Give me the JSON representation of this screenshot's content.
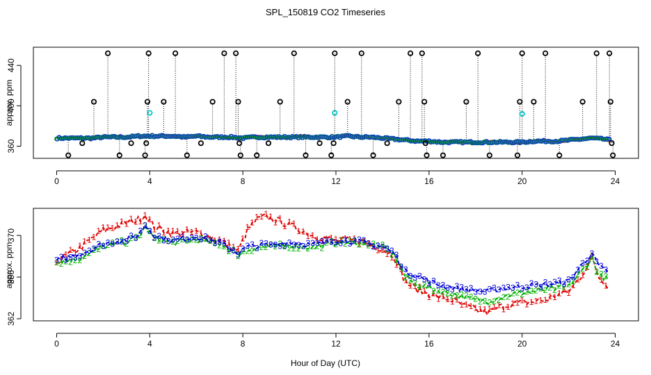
{
  "figure": {
    "title": "SPL_150819  CO2 Timeseries",
    "xlabel": "Hour of Day (UTC)"
  },
  "chart_data": [
    {
      "type": "scatter",
      "title": "",
      "xlabel": "",
      "ylabel": "approx. ppm",
      "xlim": [
        -1,
        25
      ],
      "ylim": [
        348,
        458
      ],
      "x_ticks": [
        0,
        4,
        8,
        12,
        16,
        20,
        24
      ],
      "y_ticks": [
        360,
        400,
        440
      ],
      "grid": false,
      "mean_trend": [
        [
          0,
          368
        ],
        [
          0.5,
          368
        ],
        [
          1,
          368
        ],
        [
          1.5,
          368
        ],
        [
          2,
          369
        ],
        [
          2.5,
          369
        ],
        [
          3,
          369
        ],
        [
          3.5,
          370
        ],
        [
          4,
          370
        ],
        [
          4.5,
          370
        ],
        [
          5,
          370
        ],
        [
          5.5,
          369
        ],
        [
          6,
          370
        ],
        [
          6.5,
          369
        ],
        [
          7,
          369
        ],
        [
          7.5,
          369
        ],
        [
          8,
          368
        ],
        [
          8.5,
          369
        ],
        [
          9,
          369
        ],
        [
          9.5,
          369
        ],
        [
          10,
          369
        ],
        [
          10.5,
          369
        ],
        [
          11,
          369
        ],
        [
          11.5,
          369
        ],
        [
          12,
          369
        ],
        [
          12.5,
          370
        ],
        [
          13,
          369
        ],
        [
          13.5,
          369
        ],
        [
          14,
          368
        ],
        [
          14.5,
          367
        ],
        [
          15,
          366
        ],
        [
          15.5,
          365
        ],
        [
          16,
          365
        ],
        [
          16.5,
          364
        ],
        [
          17,
          364
        ],
        [
          17.5,
          364
        ],
        [
          18,
          364
        ],
        [
          18.5,
          364
        ],
        [
          19,
          364
        ],
        [
          19.5,
          364
        ],
        [
          20,
          364
        ],
        [
          20.5,
          365
        ],
        [
          21,
          365
        ],
        [
          21.5,
          365
        ],
        [
          22,
          366
        ],
        [
          22.5,
          367
        ],
        [
          23,
          368
        ],
        [
          23.5,
          367
        ],
        [
          23.8,
          366
        ]
      ],
      "series": [
        {
          "name": "",
          "color": "#000000",
          "marker": "circle",
          "points": [
            [
              0.5,
              351
            ],
            [
              1.1,
              363
            ],
            [
              1.6,
              404
            ],
            [
              2.2,
              452
            ],
            [
              2.7,
              351
            ],
            [
              3.2,
              363
            ],
            [
              3.8,
              351
            ],
            [
              3.85,
              363
            ],
            [
              3.9,
              404
            ],
            [
              3.95,
              452
            ],
            [
              4.6,
              404
            ],
            [
              5.1,
              452
            ],
            [
              5.6,
              351
            ],
            [
              6.2,
              363
            ],
            [
              6.7,
              404
            ],
            [
              7.2,
              452
            ],
            [
              7.7,
              452
            ],
            [
              7.8,
              404
            ],
            [
              7.85,
              363
            ],
            [
              7.9,
              351
            ],
            [
              8.6,
              351
            ],
            [
              9.1,
              363
            ],
            [
              9.6,
              404
            ],
            [
              10.2,
              452
            ],
            [
              10.7,
              351
            ],
            [
              11.3,
              363
            ],
            [
              11.8,
              351
            ],
            [
              11.9,
              363
            ],
            [
              11.95,
              452
            ],
            [
              12.5,
              404
            ],
            [
              13.1,
              452
            ],
            [
              13.6,
              351
            ],
            [
              14.2,
              363
            ],
            [
              14.7,
              404
            ],
            [
              15.2,
              452
            ],
            [
              15.7,
              452
            ],
            [
              15.8,
              404
            ],
            [
              15.85,
              363
            ],
            [
              15.9,
              351
            ],
            [
              16.6,
              351
            ],
            [
              17.6,
              404
            ],
            [
              18.1,
              452
            ],
            [
              18.6,
              351
            ],
            [
              19.8,
              351
            ],
            [
              19.9,
              404
            ],
            [
              20.0,
              452
            ],
            [
              20.5,
              404
            ],
            [
              21.0,
              452
            ],
            [
              21.6,
              351
            ],
            [
              22.6,
              404
            ],
            [
              23.2,
              452
            ],
            [
              23.75,
              452
            ],
            [
              23.8,
              404
            ],
            [
              23.85,
              363
            ],
            [
              23.9,
              351
            ]
          ]
        },
        {
          "name": "",
          "color": "#00c8c8",
          "marker": "circle",
          "points": [
            [
              4.0,
              393
            ],
            [
              11.95,
              393
            ],
            [
              20.0,
              392
            ]
          ]
        }
      ]
    },
    {
      "type": "line",
      "title": "",
      "xlabel": "",
      "ylabel": "approx. ppm",
      "xlim": [
        -1,
        25
      ],
      "ylim": [
        361.8,
        372.6
      ],
      "x_ticks": [
        0,
        4,
        8,
        12,
        16,
        20,
        24
      ],
      "y_ticks": [
        362,
        366,
        370
      ],
      "grid": false,
      "hour_knots": [
        0,
        1,
        2,
        3,
        3.5,
        3.8,
        4.2,
        5,
        6,
        7,
        7.8,
        8.2,
        8.6,
        9,
        10,
        11,
        12,
        13,
        14,
        14.5,
        15,
        15.5,
        16,
        16.5,
        17,
        17.5,
        18,
        18.5,
        19,
        19.5,
        20,
        21,
        21.5,
        22,
        22.5,
        23,
        23.3,
        23.8
      ],
      "series": [
        {
          "name": "",
          "color": "#e00000",
          "marker": "1",
          "values": [
            367.5,
            368.8,
            370.5,
            371.2,
            371.5,
            372.0,
            370.8,
            370.2,
            370.3,
            369.5,
            368.5,
            370.5,
            371.5,
            371.8,
            371.0,
            370.0,
            369.5,
            369.5,
            368.7,
            368.0,
            365.5,
            364.8,
            364.4,
            364.0,
            363.8,
            363.2,
            362.9,
            362.6,
            363.1,
            363.4,
            363.5,
            363.8,
            364.3,
            364.6,
            366.0,
            367.8,
            366.0,
            365.0
          ]
        },
        {
          "name": "",
          "color": "#00b000",
          "marker": "2",
          "values": [
            367.4,
            367.8,
            368.9,
            369.4,
            369.8,
            370.8,
            369.7,
            369.3,
            369.6,
            369.2,
            368.2,
            368.6,
            368.8,
            368.9,
            369.0,
            368.8,
            369.3,
            369.3,
            368.9,
            368.2,
            366.0,
            365.2,
            365.0,
            364.6,
            364.4,
            364.1,
            363.8,
            363.7,
            364.0,
            364.3,
            364.5,
            364.8,
            364.9,
            365.1,
            366.4,
            367.8,
            366.2,
            365.6
          ]
        },
        {
          "name": "",
          "color": "#0000d8",
          "marker": "3",
          "values": [
            367.6,
            368.2,
            369.2,
            369.6,
            370.0,
            371.0,
            370.0,
            369.5,
            369.9,
            369.3,
            368.3,
            368.9,
            369.0,
            369.1,
            369.3,
            369.1,
            369.5,
            369.4,
            368.9,
            368.3,
            366.5,
            366.1,
            365.6,
            365.2,
            365.0,
            364.8,
            364.7,
            364.6,
            364.9,
            365.0,
            365.1,
            365.3,
            365.4,
            365.6,
            367.0,
            368.3,
            367.0,
            366.3
          ]
        }
      ]
    }
  ]
}
